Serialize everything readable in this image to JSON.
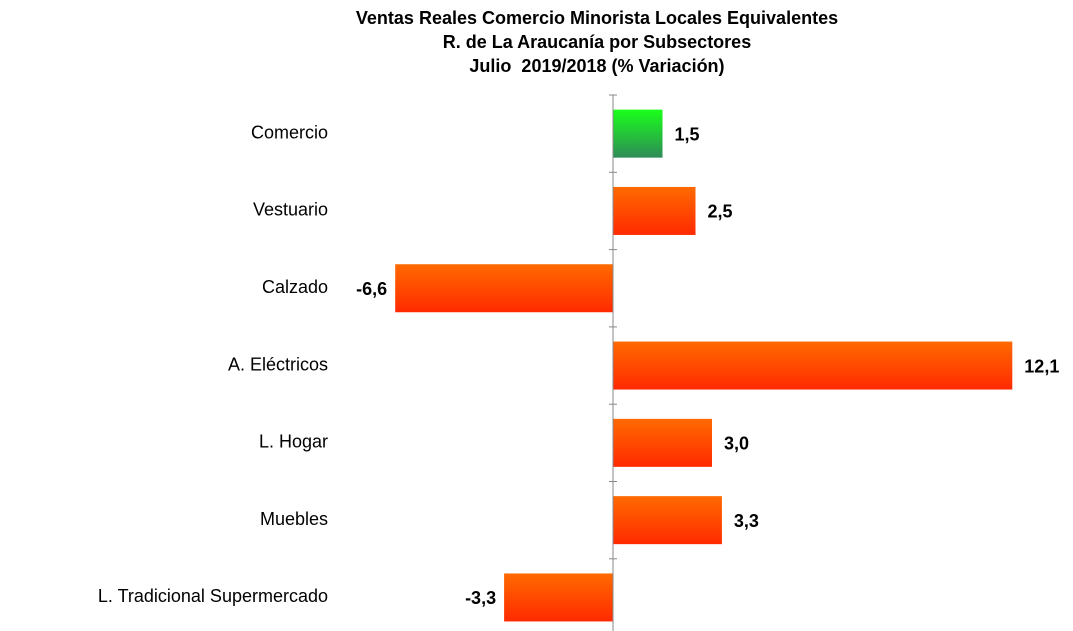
{
  "chart_data": {
    "type": "hbar",
    "title": [
      "Ventas Reales Comercio Minorista Locales Equivalentes",
      "R. de La Araucanía por Subsectores",
      "Julio  2019/2018 (% Variación)"
    ],
    "categories": [
      "Comercio",
      "Vestuario",
      "Calzado",
      "A. Eléctricos",
      "L. Hogar",
      "Muebles",
      "L. Tradicional Supermercado"
    ],
    "values": [
      1.5,
      2.5,
      -6.6,
      12.1,
      3.0,
      3.3,
      -3.3
    ],
    "value_labels": [
      "1,5",
      "2,5",
      "-6,6",
      "12,1",
      "3,0",
      "3,3",
      "-3,3"
    ],
    "colors": [
      "#1aff1a",
      "#ff6a00",
      "#ff6a00",
      "#ff6a00",
      "#ff6a00",
      "#ff6a00",
      "#ff6a00"
    ],
    "xlim": [
      -7,
      13
    ]
  }
}
